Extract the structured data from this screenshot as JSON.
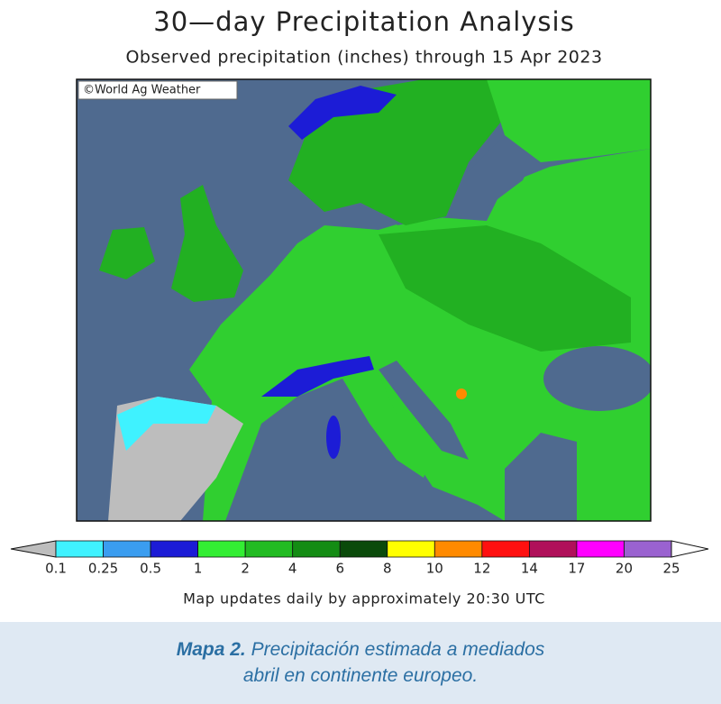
{
  "header": {
    "title": "30—day Precipitation Analysis",
    "subtitle": "Observed precipitation (inches) through 15 Apr 2023"
  },
  "map": {
    "credit": "©World Ag Weather"
  },
  "legend": {
    "labels": [
      0.1,
      0.25,
      0.5,
      1,
      2,
      4,
      6,
      8,
      10,
      12,
      14,
      17,
      20,
      25
    ],
    "under_color": "#bdbdbd",
    "over_color": "#ffffff",
    "colors": [
      "#3ff2ff",
      "#3a9df0",
      "#1c1cd6",
      "#33ee33",
      "#22bb22",
      "#148c14",
      "#0a4a0a",
      "#ffff00",
      "#ff8a00",
      "#ff1010",
      "#b0105a",
      "#ff00ff",
      "#9a62d0"
    ]
  },
  "note": "Map updates daily by approximately 20:30 UTC",
  "caption": {
    "label": "Mapa 2.",
    "line1": "Precipitación estimada a mediados",
    "line2": "abril en continente europeo."
  }
}
